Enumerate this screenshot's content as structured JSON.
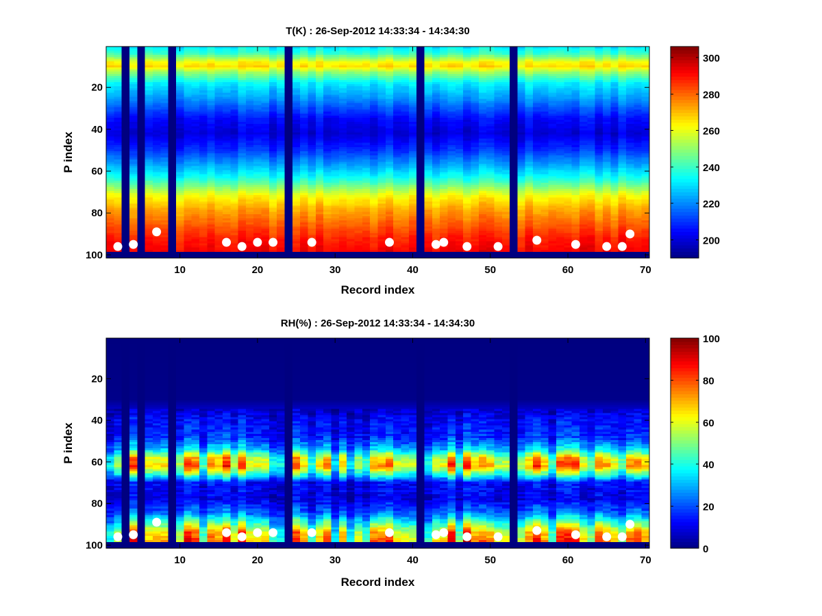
{
  "chart_data": [
    {
      "type": "heatmap",
      "title": "T(K) : 26-Sep-2012 14:33:34 - 14:34:30",
      "xlabel": "Record index",
      "ylabel": "P index",
      "xlim": [
        0.5,
        70.5
      ],
      "ylim": [
        0.5,
        101.5
      ],
      "y_reversed": true,
      "xticks": [
        10,
        20,
        30,
        40,
        50,
        60,
        70
      ],
      "yticks": [
        20,
        40,
        60,
        80,
        100
      ],
      "n_records": 70,
      "n_levels": 101,
      "colormap": "jet",
      "clim": [
        190,
        306
      ],
      "colorbar_ticks": [
        200,
        220,
        240,
        260,
        280,
        300
      ],
      "profile_p": [
        1,
        4,
        8,
        10,
        13,
        18,
        25,
        35,
        42,
        50,
        58,
        63,
        68,
        72,
        78,
        85,
        92,
        98
      ],
      "profile_values": [
        232,
        240,
        262,
        266,
        250,
        232,
        222,
        205,
        200,
        210,
        225,
        235,
        250,
        262,
        272,
        280,
        288,
        292
      ],
      "missing_records": [
        3,
        5,
        9,
        24,
        41,
        53
      ],
      "missing_levels_from": 99,
      "markers": {
        "record": [
          2,
          4,
          7,
          16,
          18,
          20,
          22,
          27,
          37,
          43,
          44,
          47,
          51,
          56,
          61,
          65,
          67,
          68
        ],
        "p_index": [
          96,
          95,
          89,
          94,
          96,
          94,
          94,
          94,
          94,
          95,
          94,
          96,
          96,
          93,
          95,
          96,
          96,
          90
        ]
      }
    },
    {
      "type": "heatmap",
      "title": "RH(%) : 26-Sep-2012 14:33:34 - 14:34:30",
      "xlabel": "Record index",
      "ylabel": "P index",
      "xlim": [
        0.5,
        70.5
      ],
      "ylim": [
        0.5,
        101.5
      ],
      "y_reversed": true,
      "xticks": [
        10,
        20,
        30,
        40,
        50,
        60,
        70
      ],
      "yticks": [
        20,
        40,
        60,
        80,
        100
      ],
      "n_records": 70,
      "n_levels": 101,
      "colormap": "jet",
      "clim": [
        0,
        100
      ],
      "colorbar_ticks": [
        0,
        20,
        40,
        60,
        80,
        100
      ],
      "profile_p": [
        1,
        30,
        34,
        40,
        48,
        54,
        58,
        62,
        66,
        70,
        78,
        84,
        88,
        94,
        98
      ],
      "profile_values": [
        0,
        1,
        6,
        12,
        15,
        30,
        55,
        62,
        40,
        12,
        10,
        20,
        35,
        60,
        65
      ],
      "missing_records": [
        3,
        5,
        9,
        24,
        41,
        53
      ],
      "missing_levels_from": 99,
      "markers": {
        "record": [
          2,
          4,
          7,
          16,
          18,
          20,
          22,
          27,
          37,
          43,
          44,
          47,
          51,
          56,
          61,
          65,
          67,
          68
        ],
        "p_index": [
          96,
          95,
          89,
          94,
          96,
          94,
          94,
          94,
          94,
          95,
          94,
          96,
          96,
          93,
          95,
          96,
          96,
          90
        ]
      }
    }
  ]
}
